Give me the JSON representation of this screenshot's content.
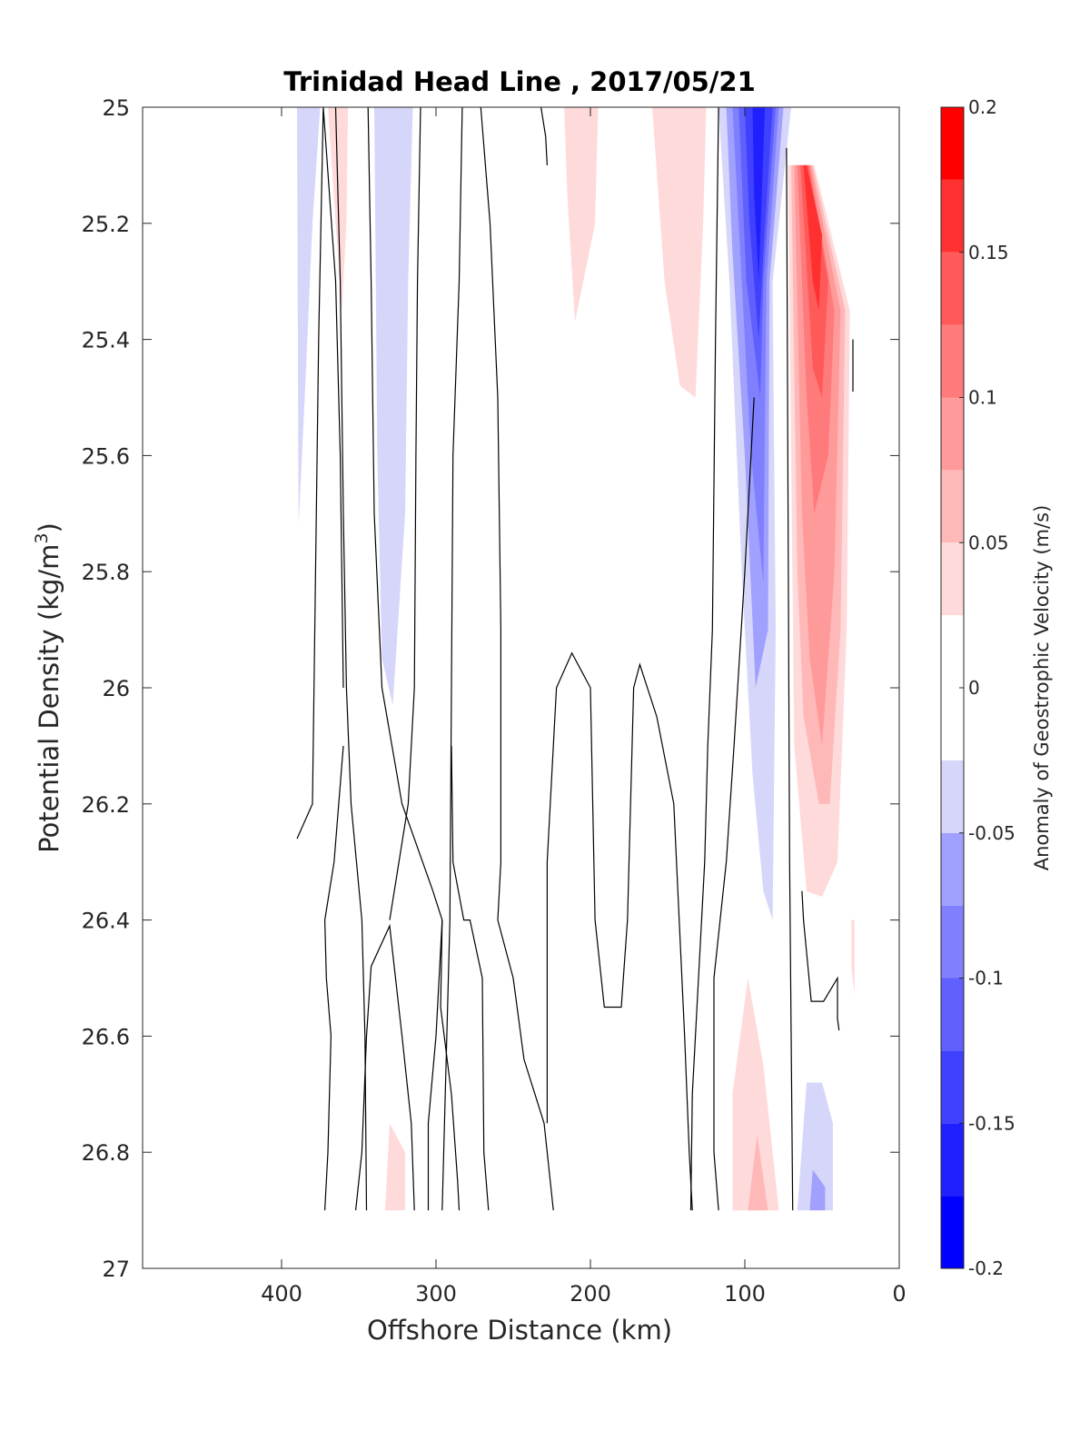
{
  "chart_data": {
    "type": "contour",
    "title": "Trinidad Head Line , 2017/05/21",
    "xlabel": "Offshore Distance (km)",
    "ylabel_prefix": "Potential Density (kg/m",
    "ylabel_sup": "3",
    "ylabel_suffix": ")",
    "colorbar_label": "Anomaly of Geostrophic Velocity (m/s)",
    "x_axis": {
      "lim": [
        490,
        0
      ],
      "reversed": true,
      "ticks": [
        400,
        300,
        200,
        100,
        0
      ],
      "tick_labels": [
        "400",
        "300",
        "200",
        "100",
        "0"
      ]
    },
    "y_axis": {
      "lim": [
        25,
        27
      ],
      "reversed": true,
      "ticks": [
        25,
        25.2,
        25.4,
        25.6,
        25.8,
        26,
        26.2,
        26.4,
        26.6,
        26.8,
        27
      ],
      "tick_labels": [
        "25",
        "25.2",
        "25.4",
        "25.6",
        "25.8",
        "26",
        "26.2",
        "26.4",
        "26.6",
        "26.8",
        "27"
      ]
    },
    "colorbar": {
      "range": [
        -0.2,
        0.2
      ],
      "ticks": [
        0.2,
        0.15,
        0.1,
        0.05,
        0,
        -0.05,
        -0.1,
        -0.15,
        -0.2
      ],
      "tick_labels": [
        "0.2",
        "0.15",
        "0.1",
        "0.05",
        "0",
        "-0.05",
        "-0.1",
        "-0.15",
        "-0.2"
      ],
      "levels": [
        {
          "from": -0.2,
          "to": -0.175,
          "color": "#0000ff"
        },
        {
          "from": -0.175,
          "to": -0.15,
          "color": "#2020ff"
        },
        {
          "from": -0.15,
          "to": -0.125,
          "color": "#4040ff"
        },
        {
          "from": -0.125,
          "to": -0.1,
          "color": "#6060ff"
        },
        {
          "from": -0.1,
          "to": -0.075,
          "color": "#8080ff"
        },
        {
          "from": -0.075,
          "to": -0.05,
          "color": "#a0a0ff"
        },
        {
          "from": -0.05,
          "to": -0.025,
          "color": "#d6d6fa"
        },
        {
          "from": -0.025,
          "to": 0.025,
          "color": "#ffffff"
        },
        {
          "from": 0.025,
          "to": 0.05,
          "color": "#ffdada"
        },
        {
          "from": 0.05,
          "to": 0.075,
          "color": "#ffb8b8"
        },
        {
          "from": 0.075,
          "to": 0.1,
          "color": "#ff9a9a"
        },
        {
          "from": 0.1,
          "to": 0.125,
          "color": "#ff7a7a"
        },
        {
          "from": 0.125,
          "to": 0.15,
          "color": "#ff5a5a"
        },
        {
          "from": 0.15,
          "to": 0.175,
          "color": "#ff3030"
        },
        {
          "from": 0.175,
          "to": 0.2,
          "color": "#ff0000"
        }
      ]
    },
    "filled_regions": [
      {
        "value": -0.04,
        "points": [
          [
            390,
            25
          ],
          [
            375,
            25
          ],
          [
            380,
            25.2
          ],
          [
            385,
            25.5
          ],
          [
            389,
            25.72
          ]
        ]
      },
      {
        "value": 0.04,
        "points": [
          [
            370,
            25
          ],
          [
            357,
            25
          ],
          [
            358,
            25.2
          ],
          [
            361,
            25.35
          ],
          [
            365,
            25.2
          ]
        ]
      },
      {
        "value": -0.04,
        "points": [
          [
            340,
            25
          ],
          [
            315,
            25
          ],
          [
            318,
            25.3
          ],
          [
            320,
            25.7
          ],
          [
            328,
            26.03
          ],
          [
            335,
            25.95
          ],
          [
            338,
            25.6
          ]
        ]
      },
      {
        "value": 0.04,
        "points": [
          [
            217,
            25
          ],
          [
            195,
            25
          ],
          [
            197,
            25.2
          ],
          [
            210,
            25.37
          ],
          [
            215,
            25.15
          ]
        ]
      },
      {
        "value": 0.04,
        "points": [
          [
            160,
            25
          ],
          [
            125,
            25
          ],
          [
            127,
            25.2
          ],
          [
            132,
            25.5
          ],
          [
            142,
            25.48
          ],
          [
            152,
            25.3
          ]
        ]
      },
      {
        "value": -0.04,
        "points": [
          [
            117,
            25
          ],
          [
            70,
            25
          ],
          [
            82,
            25.3
          ],
          [
            80,
            25.9
          ],
          [
            82,
            26.4
          ],
          [
            88,
            26.35
          ],
          [
            95,
            26.15
          ],
          [
            102,
            25.8
          ],
          [
            110,
            25.3
          ]
        ]
      },
      {
        "value": -0.065,
        "points": [
          [
            112,
            25
          ],
          [
            75,
            25
          ],
          [
            84,
            25.3
          ],
          [
            85,
            25.9
          ],
          [
            93,
            26
          ],
          [
            100,
            25.6
          ],
          [
            108,
            25.25
          ]
        ]
      },
      {
        "value": -0.09,
        "points": [
          [
            108,
            25
          ],
          [
            78,
            25
          ],
          [
            86,
            25.3
          ],
          [
            88,
            25.82
          ],
          [
            96,
            25.6
          ],
          [
            103,
            25.25
          ]
        ]
      },
      {
        "value": -0.115,
        "points": [
          [
            104,
            25
          ],
          [
            80,
            25
          ],
          [
            88,
            25.3
          ],
          [
            90,
            25.5
          ],
          [
            99,
            25.3
          ]
        ]
      },
      {
        "value": -0.14,
        "points": [
          [
            100,
            25
          ],
          [
            82,
            25
          ],
          [
            88,
            25.25
          ],
          [
            91,
            25.4
          ],
          [
            97,
            25.2
          ]
        ]
      },
      {
        "value": -0.165,
        "points": [
          [
            95,
            25
          ],
          [
            87,
            25
          ],
          [
            89,
            25.15
          ],
          [
            91,
            25.3
          ],
          [
            94,
            25.15
          ]
        ]
      },
      {
        "value": 0.04,
        "points": [
          [
            72,
            25.1
          ],
          [
            55,
            25.1
          ],
          [
            32,
            25.35
          ],
          [
            34,
            25.9
          ],
          [
            40,
            26.3
          ],
          [
            50,
            26.36
          ],
          [
            60,
            26.35
          ],
          [
            68,
            26.1
          ]
        ]
      },
      {
        "value": 0.065,
        "points": [
          [
            70,
            25.1
          ],
          [
            56,
            25.1
          ],
          [
            35,
            25.35
          ],
          [
            38,
            25.9
          ],
          [
            45,
            26.2
          ],
          [
            52,
            26.2
          ],
          [
            62,
            26.05
          ],
          [
            66,
            25.8
          ]
        ]
      },
      {
        "value": 0.09,
        "points": [
          [
            68,
            25.1
          ],
          [
            57,
            25.1
          ],
          [
            38,
            25.35
          ],
          [
            42,
            25.8
          ],
          [
            50,
            26.1
          ],
          [
            58,
            25.95
          ],
          [
            63,
            25.7
          ]
        ]
      },
      {
        "value": 0.115,
        "points": [
          [
            66,
            25.1
          ],
          [
            58,
            25.1
          ],
          [
            42,
            25.35
          ],
          [
            46,
            25.6
          ],
          [
            55,
            25.7
          ],
          [
            60,
            25.5
          ]
        ]
      },
      {
        "value": 0.14,
        "points": [
          [
            64,
            25.1
          ],
          [
            59,
            25.1
          ],
          [
            46,
            25.3
          ],
          [
            50,
            25.5
          ],
          [
            56,
            25.45
          ]
        ]
      },
      {
        "value": 0.165,
        "points": [
          [
            62,
            25.1
          ],
          [
            60,
            25.1
          ],
          [
            50,
            25.22
          ],
          [
            52,
            25.35
          ],
          [
            56,
            25.3
          ]
        ]
      },
      {
        "value": 0.04,
        "points": [
          [
            108,
            26.7
          ],
          [
            98,
            26.5
          ],
          [
            88,
            26.65
          ],
          [
            78,
            26.9
          ],
          [
            108,
            26.9
          ]
        ]
      },
      {
        "value": 0.065,
        "points": [
          [
            98,
            26.9
          ],
          [
            92,
            26.77
          ],
          [
            85,
            26.9
          ]
        ]
      },
      {
        "value": 0.04,
        "points": [
          [
            333,
            26.9
          ],
          [
            330,
            26.75
          ],
          [
            320,
            26.8
          ],
          [
            320,
            26.9
          ]
        ]
      },
      {
        "value": -0.04,
        "points": [
          [
            66,
            26.9
          ],
          [
            60,
            26.68
          ],
          [
            50,
            26.68
          ],
          [
            43,
            26.75
          ],
          [
            43,
            26.9
          ]
        ]
      },
      {
        "value": -0.065,
        "points": [
          [
            58,
            26.9
          ],
          [
            56,
            26.83
          ],
          [
            48,
            26.86
          ],
          [
            48,
            26.9
          ]
        ]
      },
      {
        "value": 0.04,
        "points": [
          [
            31,
            26.4
          ],
          [
            29,
            26.4
          ],
          [
            29,
            26.53
          ],
          [
            31,
            26.48
          ]
        ]
      }
    ],
    "zero_contours": [
      [
        [
          390,
          26.26
        ],
        [
          380,
          26.2
        ],
        [
          378,
          25.8
        ],
        [
          376,
          25.4
        ],
        [
          373,
          25
        ],
        [
          365,
          25.3
        ],
        [
          362,
          25.6
        ],
        [
          360,
          26
        ]
      ],
      [
        [
          365,
          25
        ],
        [
          362,
          25.3
        ],
        [
          360,
          25.7
        ],
        [
          358,
          26
        ],
        [
          355,
          26.2
        ],
        [
          348,
          26.4
        ],
        [
          346,
          26.6
        ],
        [
          345,
          26.9
        ]
      ],
      [
        [
          372,
          26.9
        ],
        [
          370,
          26.8
        ],
        [
          368,
          26.6
        ],
        [
          371,
          26.5
        ],
        [
          372,
          26.4
        ],
        [
          366,
          26.3
        ],
        [
          360,
          26.1
        ]
      ],
      [
        [
          344,
          25
        ],
        [
          342,
          25.3
        ],
        [
          340,
          25.7
        ],
        [
          335,
          26
        ],
        [
          322,
          26.2
        ],
        [
          302,
          26.35
        ],
        [
          296,
          26.4
        ],
        [
          297,
          26.55
        ],
        [
          290,
          26.7
        ],
        [
          286,
          26.85
        ],
        [
          285,
          26.9
        ]
      ],
      [
        [
          352,
          26.9
        ],
        [
          348,
          26.8
        ],
        [
          345,
          26.6
        ],
        [
          342,
          26.48
        ],
        [
          330,
          26.41
        ],
        [
          322,
          26.6
        ],
        [
          316,
          26.75
        ],
        [
          314,
          26.9
        ]
      ],
      [
        [
          310,
          25
        ],
        [
          312,
          25.3
        ],
        [
          313,
          25.6
        ],
        [
          314,
          26
        ],
        [
          318,
          26.2
        ],
        [
          330,
          26.4
        ]
      ],
      [
        [
          305,
          26.9
        ],
        [
          305,
          26.75
        ],
        [
          300,
          26.6
        ],
        [
          296,
          26.4
        ]
      ],
      [
        [
          283,
          25
        ],
        [
          285,
          25.3
        ],
        [
          289,
          25.6
        ],
        [
          290,
          26
        ],
        [
          291,
          26.4
        ],
        [
          293,
          26.6
        ],
        [
          295,
          26.8
        ],
        [
          296,
          26.9
        ]
      ],
      [
        [
          271,
          25
        ],
        [
          265,
          25.2
        ],
        [
          260,
          25.5
        ],
        [
          258,
          25.9
        ],
        [
          258,
          26.3
        ],
        [
          260,
          26.4
        ],
        [
          250,
          26.5
        ],
        [
          243,
          26.64
        ],
        [
          230,
          26.75
        ],
        [
          224,
          26.9
        ]
      ],
      [
        [
          266,
          26.9
        ],
        [
          269,
          26.8
        ],
        [
          270,
          26.5
        ],
        [
          278,
          26.4
        ],
        [
          282,
          26.4
        ],
        [
          289,
          26.3
        ],
        [
          290,
          26.1
        ]
      ],
      [
        [
          232,
          25
        ],
        [
          229,
          25.05
        ],
        [
          228,
          25.1
        ]
      ],
      [
        [
          228,
          26.75
        ],
        [
          228,
          26.3
        ],
        [
          222,
          26
        ],
        [
          212,
          25.94
        ],
        [
          200,
          26
        ],
        [
          197,
          26.4
        ],
        [
          191,
          26.55
        ],
        [
          180,
          26.55
        ],
        [
          176,
          26.4
        ],
        [
          172,
          26
        ],
        [
          168,
          25.96
        ],
        [
          157,
          26.05
        ],
        [
          146,
          26.2
        ],
        [
          139,
          26.6
        ],
        [
          136,
          26.8
        ],
        [
          134,
          26.9
        ]
      ],
      [
        [
          117,
          25
        ],
        [
          119,
          25.4
        ],
        [
          121,
          25.9
        ],
        [
          124,
          26.1
        ],
        [
          126,
          26.3
        ],
        [
          130,
          26.5
        ],
        [
          134,
          26.7
        ],
        [
          135,
          26.9
        ]
      ],
      [
        [
          117,
          26.9
        ],
        [
          120,
          26.8
        ],
        [
          120,
          26.5
        ],
        [
          112,
          26.3
        ],
        [
          107,
          26.1
        ],
        [
          100,
          25.8
        ],
        [
          94,
          25.5
        ]
      ],
      [
        [
          73,
          25.07
        ],
        [
          72,
          25.7
        ],
        [
          71,
          26.3
        ],
        [
          69,
          26.9
        ]
      ],
      [
        [
          63,
          26.35
        ],
        [
          62,
          26.4
        ],
        [
          57,
          26.54
        ],
        [
          49,
          26.54
        ],
        [
          40,
          26.5
        ],
        [
          40,
          26.57
        ],
        [
          39,
          26.59
        ]
      ],
      [
        [
          30,
          25.4
        ],
        [
          30,
          25.49
        ]
      ]
    ]
  }
}
